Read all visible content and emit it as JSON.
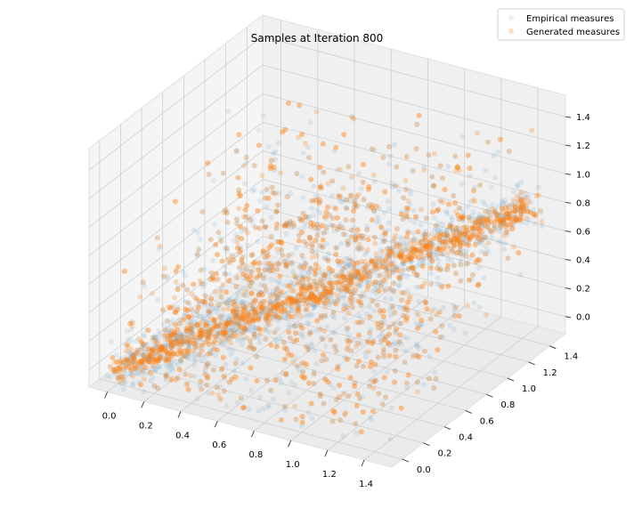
{
  "chart_data": {
    "type": "scatter3d",
    "title": "Samples at Iteration 800",
    "xlabel": "",
    "ylabel": "",
    "zlabel": "",
    "xlim": [
      -0.1,
      1.55
    ],
    "ylim": [
      -0.1,
      1.55
    ],
    "zlim": [
      -0.12,
      1.55
    ],
    "xticks": [
      "0.0",
      "0.2",
      "0.4",
      "0.6",
      "0.8",
      "1.0",
      "1.2",
      "1.4"
    ],
    "yticks": [
      "0.0",
      "0.2",
      "0.4",
      "0.6",
      "0.8",
      "1.0",
      "1.2",
      "1.4"
    ],
    "zticks": [
      "0.0",
      "0.2",
      "0.4",
      "0.6",
      "0.8",
      "1.0",
      "1.2",
      "1.4"
    ],
    "grid": true,
    "legend_placement": "top-right",
    "series": [
      {
        "name": "Empirical measures",
        "color": "#1f77b4",
        "alpha": 0.1
      },
      {
        "name": "Generated measures",
        "color": "#ff7f0e",
        "alpha": 0.25
      }
    ]
  }
}
